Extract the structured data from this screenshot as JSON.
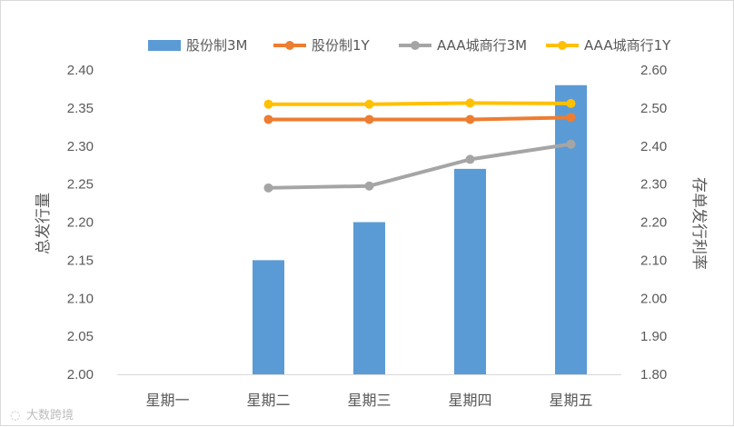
{
  "chart_data": {
    "type": "bar",
    "categories": [
      "星期一",
      "星期二",
      "星期三",
      "星期四",
      "星期五"
    ],
    "series": [
      {
        "name": "股份制3M",
        "type": "bar",
        "axis": "left",
        "color": "#5b9bd5",
        "values": [
          null,
          2.15,
          2.2,
          2.27,
          2.38
        ]
      },
      {
        "name": "股份制1Y",
        "type": "line",
        "axis": "right",
        "color": "#ed7d31",
        "values": [
          null,
          2.47,
          2.47,
          2.47,
          2.475
        ]
      },
      {
        "name": "AAA城商行3M",
        "type": "line",
        "axis": "right",
        "color": "#a5a5a5",
        "values": [
          null,
          2.29,
          2.295,
          2.365,
          2.405
        ]
      },
      {
        "name": "AAA城商行1Y",
        "type": "line",
        "axis": "right",
        "color": "#ffc000",
        "values": [
          null,
          2.51,
          2.51,
          2.513,
          2.512
        ]
      }
    ],
    "ylabel": "总发行量",
    "y2label": "存单发行利率",
    "ylim": [
      2.0,
      2.4
    ],
    "y2lim": [
      1.8,
      2.6
    ],
    "yticks": [
      "2.00",
      "2.05",
      "2.10",
      "2.15",
      "2.20",
      "2.25",
      "2.30",
      "2.35",
      "2.40"
    ],
    "y2ticks": [
      "1.80",
      "1.90",
      "2.00",
      "2.10",
      "2.20",
      "2.30",
      "2.40",
      "2.50",
      "2.60"
    ],
    "legend_position": "top",
    "grid": false
  },
  "watermark": "大数跨境"
}
